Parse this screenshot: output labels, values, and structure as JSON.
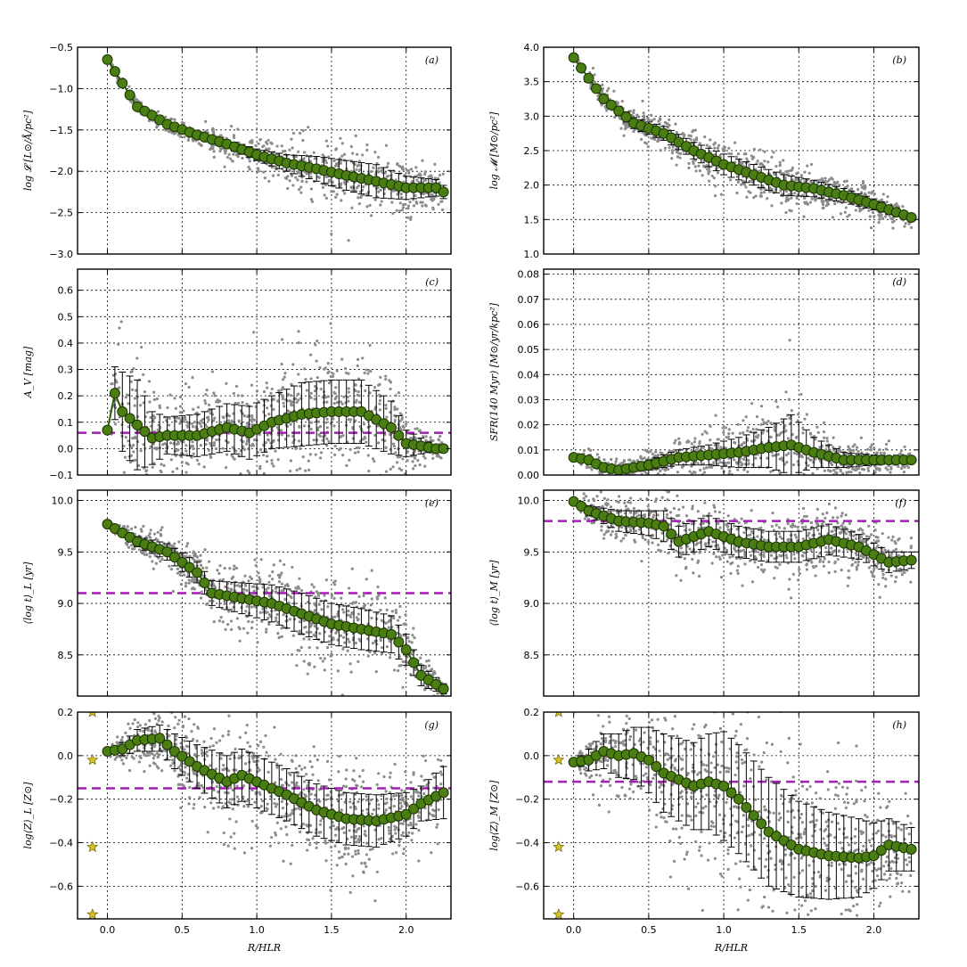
{
  "chart_data": [
    {
      "id": "a",
      "type": "scatter",
      "panel_label": "(a)",
      "ylabel": "log 𝓛 [L⊙/Å/pc²]",
      "xlabel": "",
      "xlim": [
        -0.2,
        2.3
      ],
      "ylim": [
        -3.0,
        -0.5
      ],
      "xticks": [
        "0.0",
        "0.5",
        "1.0",
        "1.5",
        "2.0"
      ],
      "yticks": [
        "−3.0",
        "−2.5",
        "−2.0",
        "−1.5",
        "−1.0",
        "−0.5"
      ],
      "ytick_values": [
        -3.0,
        -2.5,
        -2.0,
        -1.5,
        -1.0,
        -0.5
      ],
      "profile_r": [
        0,
        0.2,
        0.4,
        0.6,
        0.8,
        1.0,
        1.2,
        1.4,
        1.6,
        1.8,
        2.0,
        2.2,
        2.25
      ],
      "profile_y": [
        -0.65,
        -1.22,
        -1.43,
        -1.56,
        -1.67,
        -1.8,
        -1.9,
        -1.97,
        -2.05,
        -2.12,
        -2.2,
        -2.2,
        -2.25
      ],
      "profile_err": [
        0,
        0.01,
        0.02,
        0.03,
        0.05,
        0.07,
        0.1,
        0.15,
        0.18,
        0.2,
        0.14,
        0.1,
        0.08
      ],
      "hline": null,
      "stars": []
    },
    {
      "id": "b",
      "type": "scatter",
      "panel_label": "(b)",
      "ylabel": "log 𝓜 [M⊙/pc²]",
      "xlabel": "",
      "xlim": [
        -0.2,
        2.3
      ],
      "ylim": [
        1.0,
        4.0
      ],
      "xticks": [
        "0.0",
        "0.5",
        "1.0",
        "1.5",
        "2.0"
      ],
      "yticks": [
        "1.0",
        "1.5",
        "2.0",
        "2.5",
        "3.0",
        "3.5",
        "4.0"
      ],
      "ytick_values": [
        1.0,
        1.5,
        2.0,
        2.5,
        3.0,
        3.5,
        4.0
      ],
      "profile_r": [
        0,
        0.1,
        0.2,
        0.4,
        0.6,
        0.8,
        1.0,
        1.2,
        1.4,
        1.6,
        1.8,
        2.0,
        2.25
      ],
      "profile_y": [
        3.85,
        3.55,
        3.25,
        2.9,
        2.75,
        2.5,
        2.3,
        2.15,
        2.0,
        1.95,
        1.85,
        1.72,
        1.53
      ],
      "profile_err": [
        0,
        0.03,
        0.05,
        0.08,
        0.1,
        0.12,
        0.15,
        0.15,
        0.15,
        0.12,
        0.1,
        0.08,
        0.05
      ],
      "hline": null,
      "stars": []
    },
    {
      "id": "c",
      "type": "scatter",
      "panel_label": "(c)",
      "ylabel": "A_V [mag]",
      "xlabel": "",
      "xlim": [
        -0.2,
        2.3
      ],
      "ylim": [
        -0.1,
        0.68
      ],
      "xticks": [
        "0.0",
        "0.5",
        "1.0",
        "1.5",
        "2.0"
      ],
      "yticks": [
        "−0.1",
        "0.0",
        "0.1",
        "0.2",
        "0.3",
        "0.4",
        "0.5",
        "0.6"
      ],
      "ytick_values": [
        -0.1,
        0.0,
        0.1,
        0.2,
        0.3,
        0.4,
        0.5,
        0.6
      ],
      "profile_r": [
        0,
        0.05,
        0.1,
        0.2,
        0.3,
        0.4,
        0.6,
        0.8,
        0.95,
        1.1,
        1.3,
        1.5,
        1.7,
        1.9,
        2.0,
        2.2
      ],
      "profile_y": [
        0.07,
        0.21,
        0.14,
        0.09,
        0.04,
        0.05,
        0.05,
        0.08,
        0.06,
        0.1,
        0.13,
        0.14,
        0.14,
        0.08,
        0.02,
        0.0
      ],
      "profile_err": [
        0,
        0.1,
        0.15,
        0.17,
        0.1,
        0.07,
        0.08,
        0.09,
        0.1,
        0.1,
        0.12,
        0.12,
        0.12,
        0.1,
        0.05,
        0.01
      ],
      "hline": 0.06,
      "stars": []
    },
    {
      "id": "d",
      "type": "scatter",
      "panel_label": "(d)",
      "ylabel": "SFR(140 Myr) [M⊙/yr/kpc²]",
      "xlabel": "",
      "xlim": [
        -0.2,
        2.3
      ],
      "ylim": [
        0.0,
        0.082
      ],
      "xticks": [
        "0.0",
        "0.5",
        "1.0",
        "1.5",
        "2.0"
      ],
      "yticks": [
        "0.00",
        "0.01",
        "0.02",
        "0.03",
        "0.04",
        "0.05",
        "0.06",
        "0.07",
        "0.08"
      ],
      "ytick_values": [
        0.0,
        0.01,
        0.02,
        0.03,
        0.04,
        0.05,
        0.06,
        0.07,
        0.08
      ],
      "profile_r": [
        0,
        0.1,
        0.2,
        0.3,
        0.5,
        0.7,
        0.9,
        1.1,
        1.3,
        1.45,
        1.6,
        1.8,
        2.0,
        2.2
      ],
      "profile_y": [
        0.007,
        0.006,
        0.003,
        0.002,
        0.004,
        0.007,
        0.008,
        0.009,
        0.011,
        0.012,
        0.009,
        0.006,
        0.006,
        0.006
      ],
      "profile_err": [
        0,
        0.001,
        0.001,
        0.001,
        0.002,
        0.003,
        0.004,
        0.006,
        0.008,
        0.012,
        0.006,
        0.003,
        0.002,
        0.001
      ],
      "hline": null,
      "stars": []
    },
    {
      "id": "e",
      "type": "scatter",
      "panel_label": "(e)",
      "ylabel": "⟨log t⟩_L [yr]",
      "xlabel": "",
      "xlim": [
        -0.2,
        2.3
      ],
      "ylim": [
        8.1,
        10.1
      ],
      "xticks": [
        "0.0",
        "0.5",
        "1.0",
        "1.5",
        "2.0"
      ],
      "yticks": [
        "8.5",
        "9.0",
        "9.5",
        "10.0"
      ],
      "ytick_values": [
        8.5,
        9.0,
        9.5,
        10.0
      ],
      "profile_r": [
        0,
        0.2,
        0.4,
        0.6,
        0.7,
        0.9,
        1.1,
        1.3,
        1.5,
        1.7,
        1.9,
        2.0,
        2.1,
        2.25
      ],
      "profile_y": [
        9.77,
        9.6,
        9.5,
        9.3,
        9.1,
        9.05,
        9.0,
        8.9,
        8.8,
        8.75,
        8.7,
        8.55,
        8.3,
        8.17
      ],
      "profile_err": [
        0,
        0.05,
        0.08,
        0.1,
        0.12,
        0.15,
        0.18,
        0.2,
        0.2,
        0.2,
        0.18,
        0.15,
        0.1,
        0.05
      ],
      "hline": 9.1,
      "stars": []
    },
    {
      "id": "f",
      "type": "scatter",
      "panel_label": "(f)",
      "ylabel": "⟨log t⟩_M [yr]",
      "xlabel": "",
      "xlim": [
        -0.2,
        2.3
      ],
      "ylim": [
        8.1,
        10.1
      ],
      "xticks": [
        "0.0",
        "0.5",
        "1.0",
        "1.5",
        "2.0"
      ],
      "yticks": [
        "8.5",
        "9.0",
        "9.5",
        "10.0"
      ],
      "ytick_values": [
        8.5,
        9.0,
        9.5,
        10.0
      ],
      "profile_r": [
        0,
        0.1,
        0.3,
        0.5,
        0.6,
        0.7,
        0.9,
        1.1,
        1.3,
        1.5,
        1.7,
        1.9,
        2.1,
        2.25
      ],
      "profile_y": [
        9.99,
        9.9,
        9.8,
        9.78,
        9.75,
        9.6,
        9.7,
        9.6,
        9.55,
        9.55,
        9.62,
        9.55,
        9.4,
        9.42
      ],
      "profile_err": [
        0,
        0.05,
        0.1,
        0.12,
        0.15,
        0.15,
        0.15,
        0.15,
        0.15,
        0.15,
        0.15,
        0.12,
        0.1,
        0.08
      ],
      "hline": 9.8,
      "stars": []
    },
    {
      "id": "g",
      "type": "scatter",
      "panel_label": "(g)",
      "ylabel": "log⟨Z⟩_L [Z⊙]",
      "xlabel": "R/HLR",
      "xlim": [
        -0.2,
        2.3
      ],
      "ylim": [
        -0.75,
        0.2
      ],
      "xticks": [
        "0.0",
        "0.5",
        "1.0",
        "1.5",
        "2.0"
      ],
      "yticks": [
        "−0.6",
        "−0.4",
        "−0.2",
        "0.0",
        "0.2"
      ],
      "ytick_values": [
        -0.6,
        -0.4,
        -0.2,
        0.0,
        0.2
      ],
      "profile_r": [
        0,
        0.1,
        0.2,
        0.35,
        0.45,
        0.6,
        0.8,
        0.9,
        1.0,
        1.2,
        1.4,
        1.6,
        1.8,
        2.0,
        2.1,
        2.25
      ],
      "profile_y": [
        0.02,
        0.03,
        0.07,
        0.08,
        0.02,
        -0.05,
        -0.12,
        -0.09,
        -0.12,
        -0.18,
        -0.25,
        -0.29,
        -0.3,
        -0.27,
        -0.22,
        -0.17
      ],
      "profile_err": [
        0,
        0.03,
        0.05,
        0.06,
        0.08,
        0.1,
        0.12,
        0.12,
        0.12,
        0.12,
        0.12,
        0.12,
        0.12,
        0.1,
        0.08,
        0.12
      ],
      "hline": -0.15,
      "stars": [
        0.2,
        -0.02,
        -0.42,
        -0.73
      ]
    },
    {
      "id": "h",
      "type": "scatter",
      "panel_label": "(h)",
      "ylabel": "log⟨Z⟩_M [Z⊙]",
      "xlabel": "R/HLR",
      "xlim": [
        -0.2,
        2.3
      ],
      "ylim": [
        -0.75,
        0.2
      ],
      "xticks": [
        "0.0",
        "0.5",
        "1.0",
        "1.5",
        "2.0"
      ],
      "yticks": [
        "−0.6",
        "−0.4",
        "−0.2",
        "0.0",
        "0.2"
      ],
      "ytick_values": [
        -0.6,
        -0.4,
        -0.2,
        0.0,
        0.2
      ],
      "profile_r": [
        0,
        0.1,
        0.2,
        0.3,
        0.4,
        0.5,
        0.6,
        0.8,
        0.9,
        1.0,
        1.1,
        1.3,
        1.5,
        1.7,
        1.9,
        2.0,
        2.1,
        2.25
      ],
      "profile_y": [
        -0.03,
        -0.02,
        0.02,
        0.0,
        0.01,
        -0.02,
        -0.08,
        -0.14,
        -0.12,
        -0.14,
        -0.2,
        -0.35,
        -0.43,
        -0.46,
        -0.47,
        -0.46,
        -0.41,
        -0.43
      ],
      "profile_err": [
        0,
        0.05,
        0.08,
        0.1,
        0.12,
        0.15,
        0.18,
        0.2,
        0.22,
        0.25,
        0.25,
        0.25,
        0.22,
        0.2,
        0.18,
        0.15,
        0.12,
        0.1
      ],
      "hline": -0.12,
      "stars": [
        0.2,
        -0.02,
        -0.42,
        -0.73
      ]
    }
  ]
}
